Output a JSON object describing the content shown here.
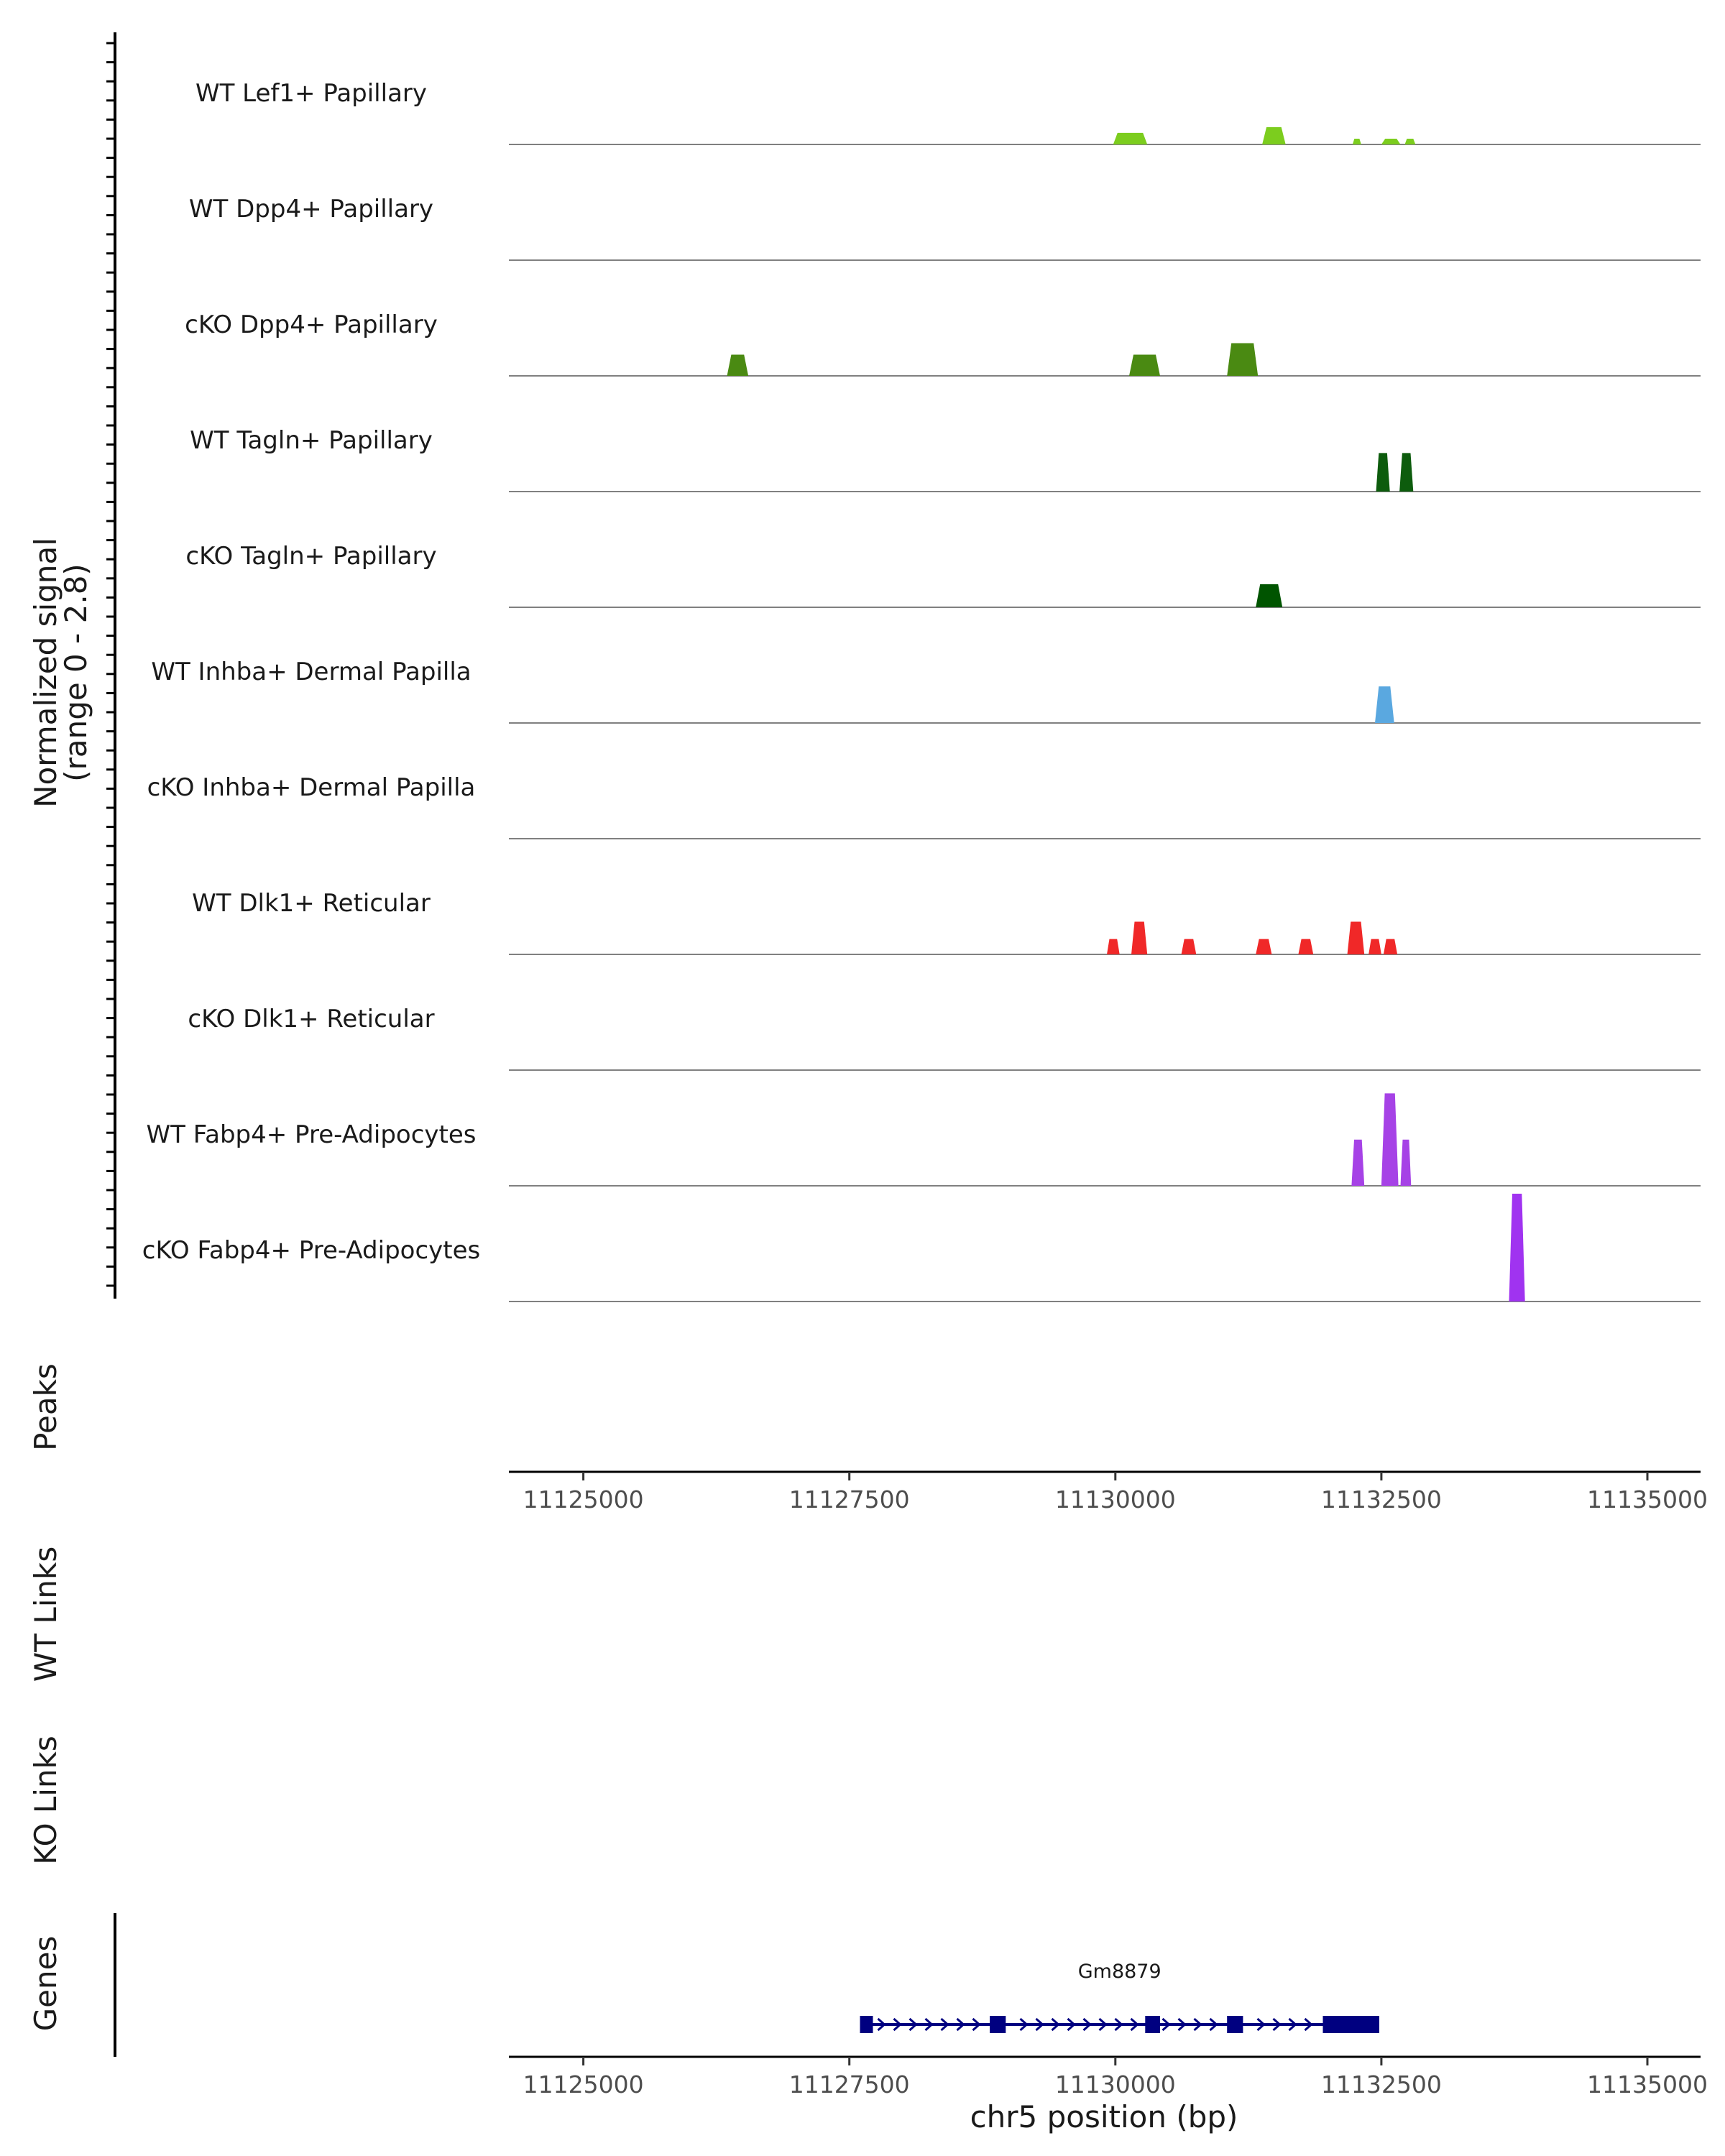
{
  "chart_data": {
    "type": "area",
    "title": "",
    "chromosome": "chr5",
    "xlim": [
      11124300,
      11135500
    ],
    "ylim": [
      0,
      2.8
    ],
    "coverage": {
      "ylabel_line1": "Normalized signal",
      "ylabel_line2": "(range 0 - 2.8)",
      "tracks": [
        {
          "name": "WT Lef1+ Papillary",
          "color": "#7CCD1E",
          "peaks": [
            {
              "start": 11129980,
              "end": 11130300,
              "height": 0.3
            },
            {
              "start": 11131380,
              "end": 11131600,
              "height": 0.45
            },
            {
              "start": 11132230,
              "end": 11132310,
              "height": 0.15
            },
            {
              "start": 11132500,
              "end": 11132680,
              "height": 0.15
            },
            {
              "start": 11132720,
              "end": 11132820,
              "height": 0.15
            }
          ]
        },
        {
          "name": "WT Dpp4+ Papillary",
          "color": "#5DA11A",
          "peaks": []
        },
        {
          "name": "cKO Dpp4+ Papillary",
          "color": "#4A8A12",
          "peaks": [
            {
              "start": 11126350,
              "end": 11126550,
              "height": 0.55
            },
            {
              "start": 11130130,
              "end": 11130420,
              "height": 0.55
            },
            {
              "start": 11131050,
              "end": 11131340,
              "height": 0.85
            }
          ]
        },
        {
          "name": "WT Tagln+ Papillary",
          "color": "#0D5C0D",
          "peaks": [
            {
              "start": 11132450,
              "end": 11132580,
              "height": 1.0
            },
            {
              "start": 11132670,
              "end": 11132800,
              "height": 1.0
            }
          ]
        },
        {
          "name": "cKO Tagln+ Papillary",
          "color": "#005400",
          "peaks": [
            {
              "start": 11131320,
              "end": 11131570,
              "height": 0.6
            }
          ]
        },
        {
          "name": "WT Inhba+ Dermal Papilla",
          "color": "#5AA8E0",
          "peaks": [
            {
              "start": 11132440,
              "end": 11132620,
              "height": 0.95
            }
          ]
        },
        {
          "name": "cKO Inhba+ Dermal Papilla",
          "color": "#5AA8E0",
          "peaks": []
        },
        {
          "name": "WT Dlk1+ Reticular",
          "color": "#F02828",
          "peaks": [
            {
              "start": 11129920,
              "end": 11130040,
              "height": 0.4
            },
            {
              "start": 11130150,
              "end": 11130300,
              "height": 0.85
            },
            {
              "start": 11130620,
              "end": 11130760,
              "height": 0.4
            },
            {
              "start": 11131320,
              "end": 11131470,
              "height": 0.4
            },
            {
              "start": 11131720,
              "end": 11131860,
              "height": 0.4
            },
            {
              "start": 11132180,
              "end": 11132340,
              "height": 0.85
            },
            {
              "start": 11132380,
              "end": 11132500,
              "height": 0.4
            },
            {
              "start": 11132520,
              "end": 11132650,
              "height": 0.4
            }
          ]
        },
        {
          "name": "cKO Dlk1+ Reticular",
          "color": "#F02828",
          "peaks": []
        },
        {
          "name": "WT Fabp4+ Pre-Adipocytes",
          "color": "#A642E6",
          "peaks": [
            {
              "start": 11132220,
              "end": 11132340,
              "height": 1.2
            },
            {
              "start": 11132500,
              "end": 11132660,
              "height": 2.4
            },
            {
              "start": 11132680,
              "end": 11132780,
              "height": 1.2
            }
          ]
        },
        {
          "name": "cKO Fabp4+ Pre-Adipocytes",
          "color": "#A033F0",
          "peaks": [
            {
              "start": 11133700,
              "end": 11133850,
              "height": 2.8
            }
          ]
        }
      ]
    },
    "peaks_label": "Peaks",
    "wt_links_label": "WT Links",
    "ko_links_label": "KO Links",
    "genes_label": "Genes",
    "xticks": [
      11125000,
      11127500,
      11130000,
      11132500,
      11135000
    ],
    "xtick_labels": [
      "11125000",
      "11127500",
      "11130000",
      "11132500",
      "11135000"
    ],
    "xlabel": "chr5 position (bp)",
    "gene": {
      "name": "Gm8879",
      "color": "#000080",
      "start": 11127600,
      "end": 11132480,
      "strand": "+",
      "exons": [
        {
          "start": 11127600,
          "end": 11127720
        },
        {
          "start": 11128820,
          "end": 11128970
        },
        {
          "start": 11130280,
          "end": 11130420
        },
        {
          "start": 11131050,
          "end": 11131200
        },
        {
          "start": 11131950,
          "end": 11132480
        }
      ]
    }
  }
}
